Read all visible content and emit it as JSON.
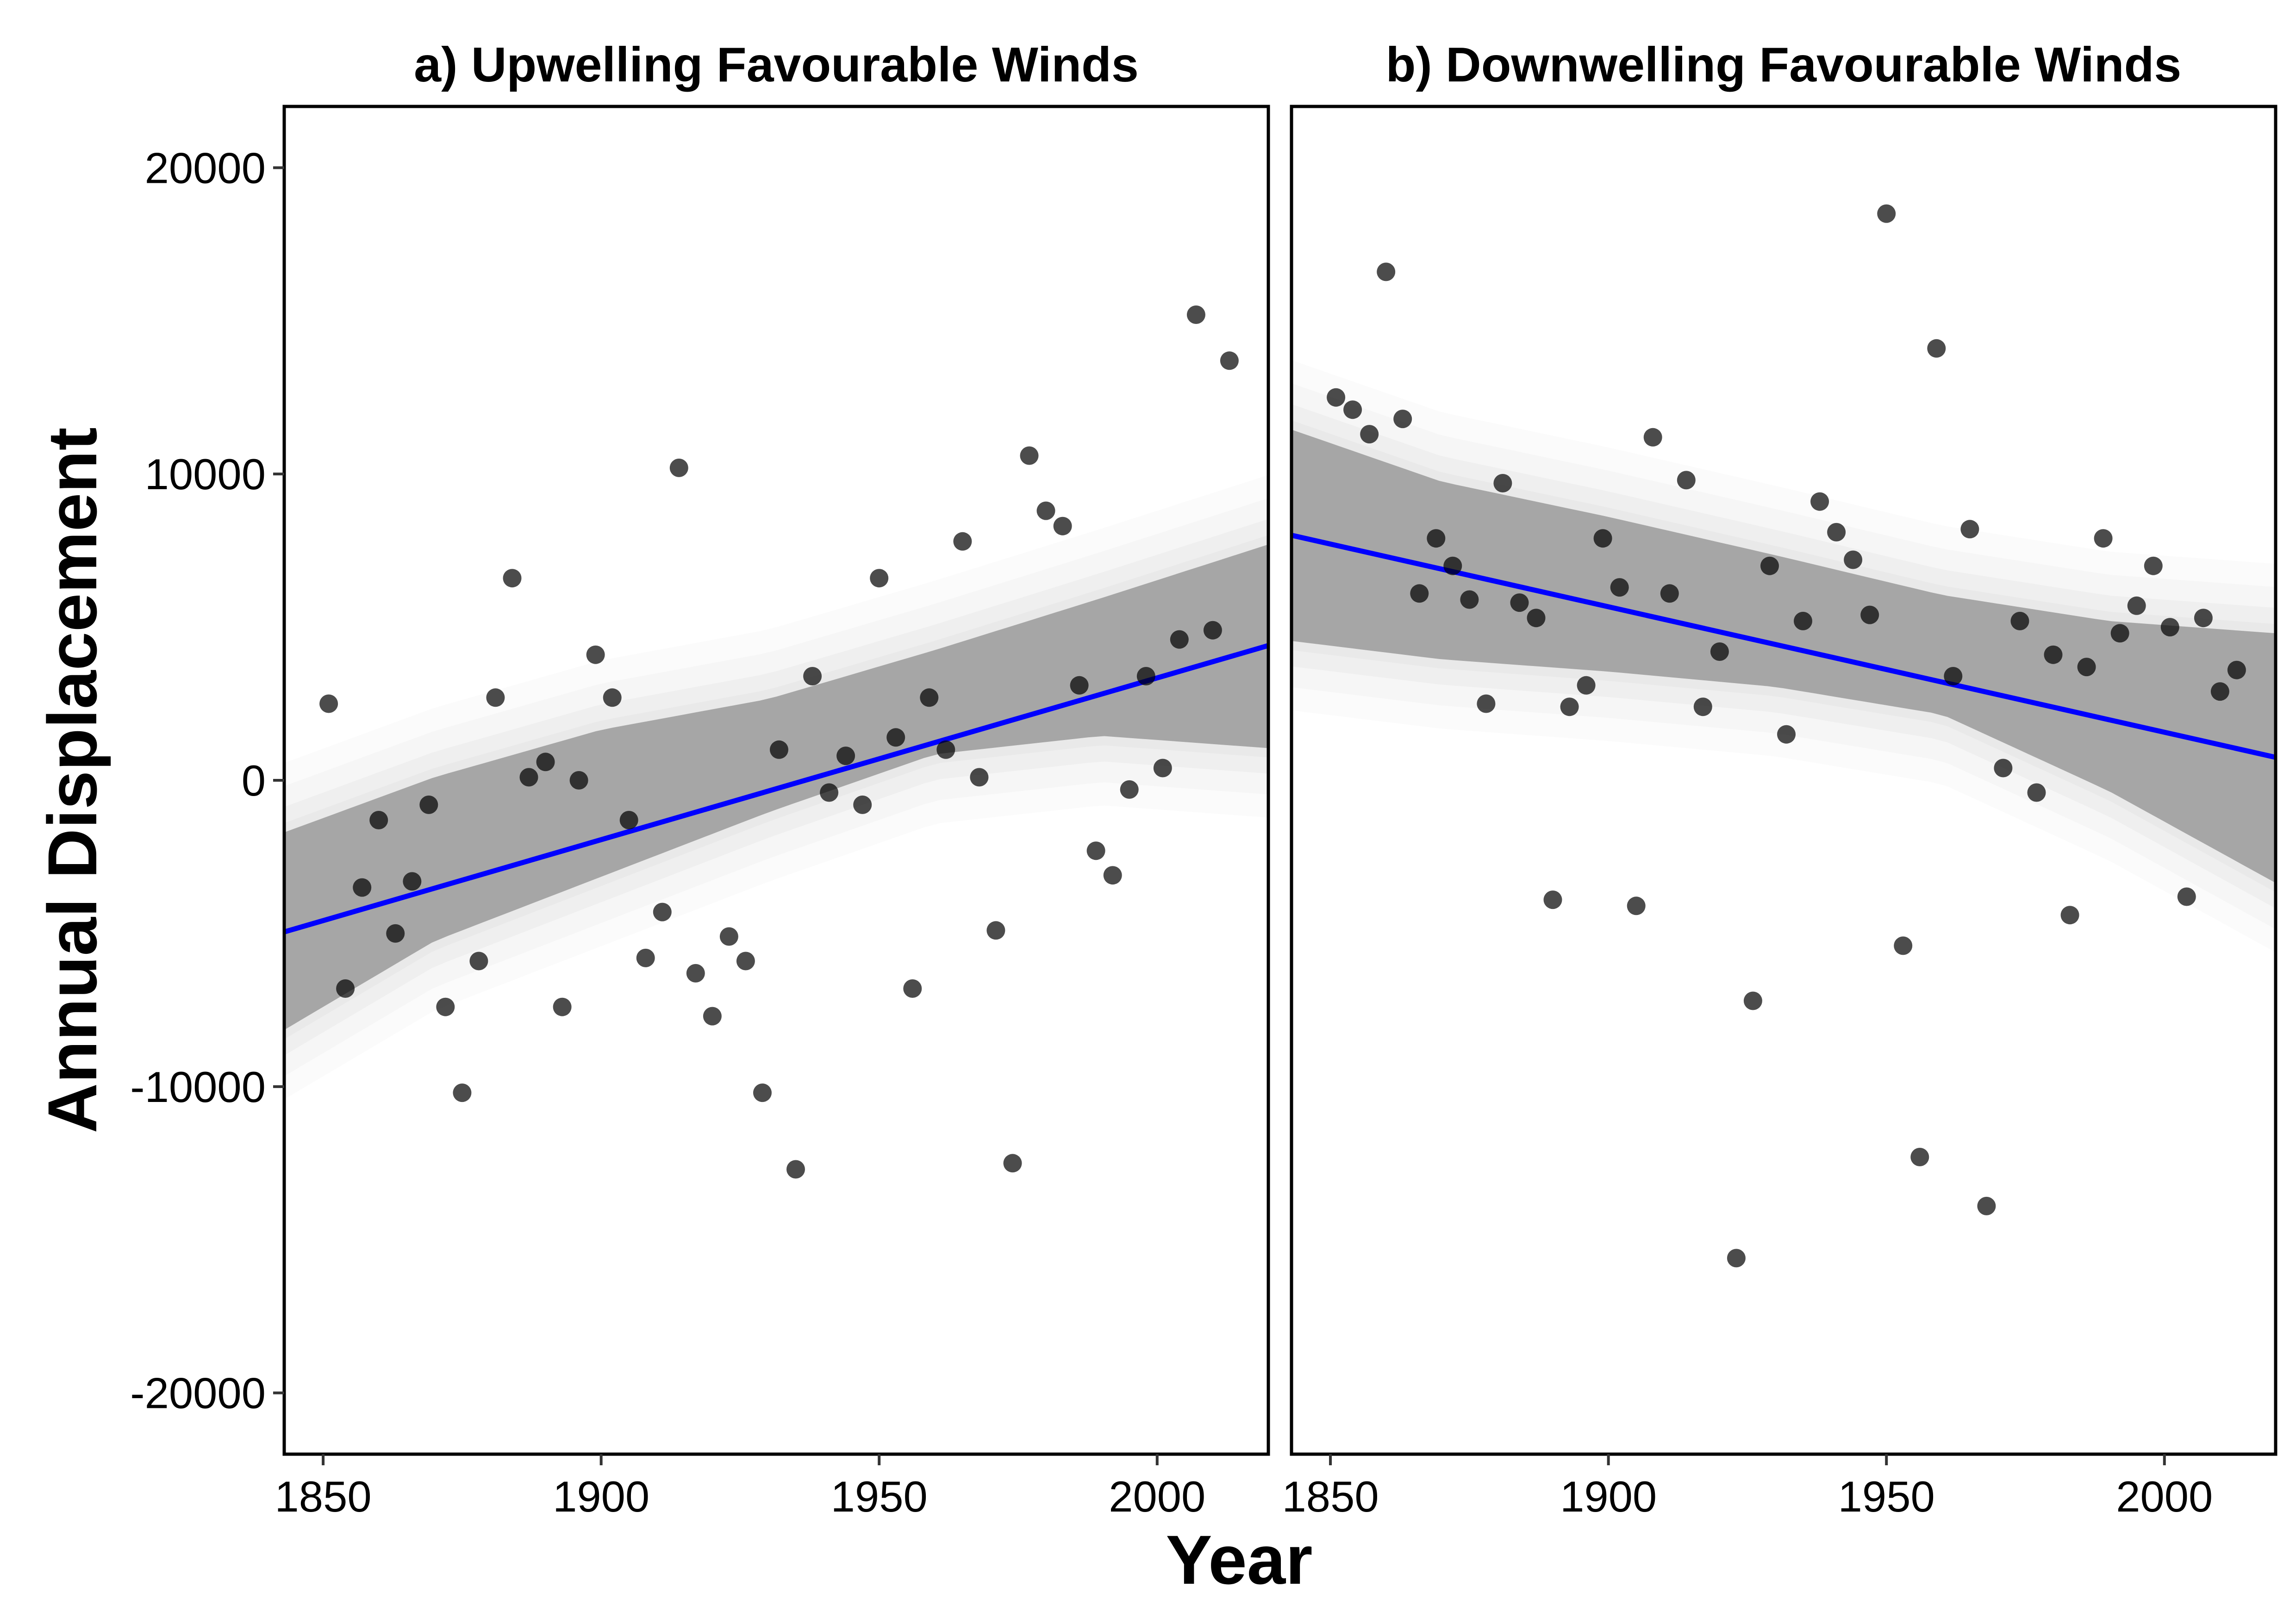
{
  "chart_data": {
    "type": "scatter",
    "xlabel": "Year",
    "ylabel": "Annual Displacement",
    "xlim": [
      1843,
      2020
    ],
    "ylim": [
      -22000,
      22000
    ],
    "x_ticks": [
      1850,
      1900,
      1950,
      2000
    ],
    "y_ticks": [
      20000,
      10000,
      0,
      -10000,
      -20000
    ],
    "grid": false,
    "legend": "none",
    "colors": {
      "points": "#000000",
      "fit_line": "#0000ff",
      "ribbon": "#a6a6a6",
      "spaghetti": "#d9d9d9"
    },
    "panels": [
      {
        "title": "a) Upwelling Favourable Winds",
        "fit": {
          "x": [
            1843,
            2020
          ],
          "y": [
            -4950,
            4400
          ]
        },
        "ribbon": {
          "x": [
            1843,
            1870,
            1900,
            1930,
            1960,
            1990,
            2020
          ],
          "upper": [
            -1700,
            100,
            1650,
            2650,
            4250,
            5950,
            7700
          ],
          "lower": [
            -8150,
            -5250,
            -3150,
            -1050,
            850,
            1450,
            1050
          ]
        },
        "points": [
          [
            1851,
            2500
          ],
          [
            1854,
            -6800
          ],
          [
            1857,
            -3500
          ],
          [
            1860,
            -1300
          ],
          [
            1863,
            -5000
          ],
          [
            1866,
            -3300
          ],
          [
            1869,
            -800
          ],
          [
            1872,
            -7400
          ],
          [
            1875,
            -10200
          ],
          [
            1878,
            -5900
          ],
          [
            1881,
            2700
          ],
          [
            1884,
            6600
          ],
          [
            1887,
            100
          ],
          [
            1890,
            600
          ],
          [
            1893,
            -7400
          ],
          [
            1896,
            0
          ],
          [
            1899,
            4100
          ],
          [
            1902,
            2700
          ],
          [
            1905,
            -1300
          ],
          [
            1908,
            -5800
          ],
          [
            1911,
            -4300
          ],
          [
            1914,
            10200
          ],
          [
            1917,
            -6300
          ],
          [
            1920,
            -7700
          ],
          [
            1923,
            -5100
          ],
          [
            1926,
            -5900
          ],
          [
            1929,
            -10200
          ],
          [
            1932,
            1000
          ],
          [
            1935,
            -12700
          ],
          [
            1938,
            3400
          ],
          [
            1941,
            -400
          ],
          [
            1944,
            800
          ],
          [
            1947,
            -800
          ],
          [
            1950,
            6600
          ],
          [
            1953,
            1400
          ],
          [
            1956,
            -6800
          ],
          [
            1959,
            2700
          ],
          [
            1962,
            1000
          ],
          [
            1965,
            7800
          ],
          [
            1968,
            100
          ],
          [
            1971,
            -4900
          ],
          [
            1974,
            -12500
          ],
          [
            1977,
            10600
          ],
          [
            1980,
            8800
          ],
          [
            1983,
            8300
          ],
          [
            1986,
            3100
          ],
          [
            1989,
            -2300
          ],
          [
            1992,
            -3100
          ],
          [
            1995,
            -300
          ],
          [
            1998,
            3400
          ],
          [
            2001,
            400
          ],
          [
            2004,
            4600
          ],
          [
            2007,
            15200
          ],
          [
            2010,
            4900
          ],
          [
            2013,
            13700
          ]
        ]
      },
      {
        "title": "b) Downwelling Favourable Winds",
        "fit": {
          "x": [
            1843,
            2020
          ],
          "y": [
            8000,
            750
          ]
        },
        "ribbon": {
          "x": [
            1843,
            1870,
            1900,
            1930,
            1960,
            1990,
            2020
          ],
          "upper": [
            11450,
            9750,
            8600,
            7350,
            6050,
            5200,
            4800
          ],
          "lower": [
            4550,
            3950,
            3550,
            3050,
            2150,
            -350,
            -3350
          ]
        },
        "points": [
          [
            1851,
            12500
          ],
          [
            1854,
            12100
          ],
          [
            1857,
            11300
          ],
          [
            1860,
            16600
          ],
          [
            1863,
            11800
          ],
          [
            1866,
            6100
          ],
          [
            1869,
            7900
          ],
          [
            1872,
            7000
          ],
          [
            1875,
            5900
          ],
          [
            1878,
            2500
          ],
          [
            1881,
            9700
          ],
          [
            1884,
            5800
          ],
          [
            1887,
            5300
          ],
          [
            1890,
            -3900
          ],
          [
            1893,
            2400
          ],
          [
            1896,
            3100
          ],
          [
            1899,
            7900
          ],
          [
            1902,
            6300
          ],
          [
            1905,
            -4100
          ],
          [
            1908,
            11200
          ],
          [
            1911,
            6100
          ],
          [
            1914,
            9800
          ],
          [
            1917,
            2400
          ],
          [
            1920,
            4200
          ],
          [
            1923,
            -15600
          ],
          [
            1926,
            -7200
          ],
          [
            1929,
            7000
          ],
          [
            1932,
            1500
          ],
          [
            1935,
            5200
          ],
          [
            1938,
            9100
          ],
          [
            1941,
            8100
          ],
          [
            1944,
            7200
          ],
          [
            1947,
            5400
          ],
          [
            1950,
            18500
          ],
          [
            1953,
            -5400
          ],
          [
            1956,
            -12300
          ],
          [
            1959,
            14100
          ],
          [
            1962,
            3400
          ],
          [
            1965,
            8200
          ],
          [
            1968,
            -13900
          ],
          [
            1971,
            400
          ],
          [
            1974,
            5200
          ],
          [
            1977,
            -400
          ],
          [
            1980,
            4100
          ],
          [
            1983,
            -4400
          ],
          [
            1986,
            3700
          ],
          [
            1989,
            7900
          ],
          [
            1992,
            4800
          ],
          [
            1995,
            5700
          ],
          [
            1998,
            7000
          ],
          [
            2001,
            5000
          ],
          [
            2004,
            -3800
          ],
          [
            2007,
            5300
          ],
          [
            2010,
            2900
          ],
          [
            2013,
            3600
          ]
        ]
      }
    ]
  }
}
